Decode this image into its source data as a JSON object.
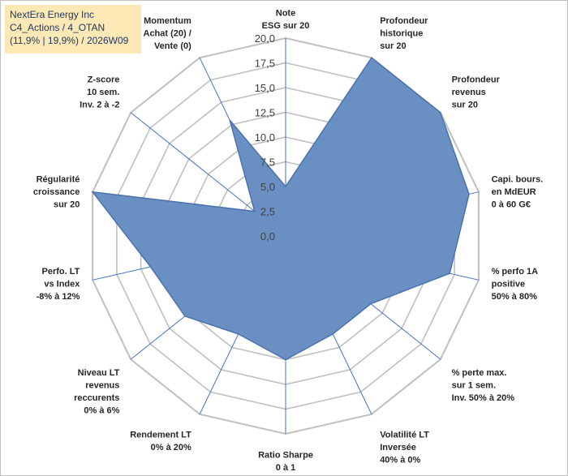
{
  "title_box": {
    "line1": "NextEra Energy Inc",
    "line2": "C4_Actions / 4_OTAN",
    "line3": "(11,9% | 19,9%) / 2026W09"
  },
  "colors": {
    "fill": "#6a8fc2",
    "stroke": "#4a72ad",
    "grid": "#bfbfbf",
    "spoke": "#4472c4",
    "title_bg": "#fde9b5",
    "title_text": "#1f3864"
  },
  "chart_data": {
    "type": "radar",
    "range": [
      0,
      20
    ],
    "ticks": [
      "0,0",
      "2,5",
      "5,0",
      "7,5",
      "10,0",
      "12,5",
      "15,0",
      "17,5",
      "20,0"
    ],
    "axes": [
      {
        "label": [
          "Note",
          "ESG sur 20"
        ],
        "value": 5
      },
      {
        "label": [
          "Profondeur",
          "historique",
          "sur 20"
        ],
        "value": 20
      },
      {
        "label": [
          "Profondeur",
          "revenus",
          "sur 20"
        ],
        "value": 20
      },
      {
        "label": [
          "Capi. bours.",
          "en MdEUR",
          "0 à 60 G€"
        ],
        "value": 19
      },
      {
        "label": [
          "% perfo 1A",
          "positive",
          "50% à 80%"
        ],
        "value": 17
      },
      {
        "label": [
          "% perte max.",
          "sur 1 sem.",
          "Inv. 50% à 20%"
        ],
        "value": 11
      },
      {
        "label": [
          "Volatilité LT",
          "Inversée",
          "40% à 0%"
        ],
        "value": 11
      },
      {
        "label": [
          "Ratio Sharpe",
          "0 à 1"
        ],
        "value": 12.5
      },
      {
        "label": [
          "Rendement LT",
          "0% à 20%"
        ],
        "value": 11
      },
      {
        "label": [
          "Niveau LT",
          "revenus",
          "reccurents",
          "0% à 6%"
        ],
        "value": 13
      },
      {
        "label": [
          "Perfo. LT",
          "vs Index",
          "-8% à 12%"
        ],
        "value": 14
      },
      {
        "label": [
          "Régularité",
          "croissance",
          "sur 20"
        ],
        "value": 20
      },
      {
        "label": [
          "Z-score",
          "10 sem.",
          "Inv. 2 à -2"
        ],
        "value": 4
      },
      {
        "label": [
          "Momentum",
          "Achat (20) /",
          "Vente (0)"
        ],
        "value": 13
      }
    ]
  }
}
